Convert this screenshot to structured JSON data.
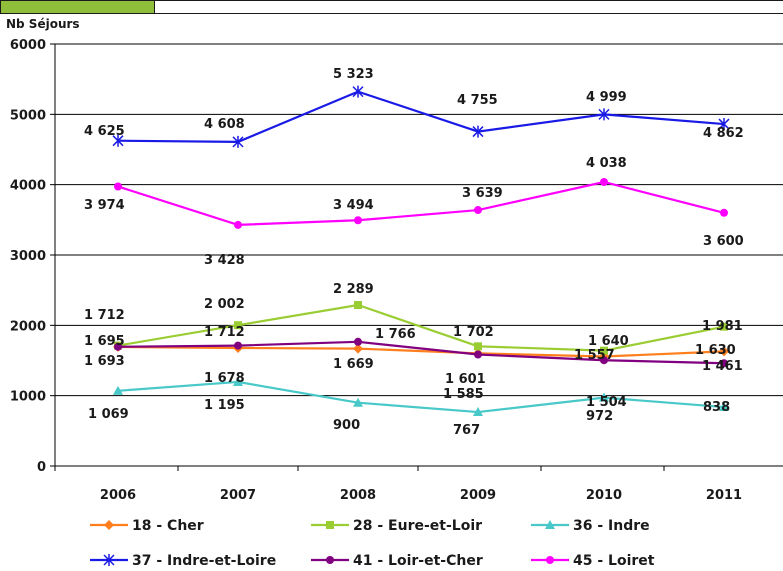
{
  "chart_data": {
    "type": "line",
    "ylabel": "Nb Séjours",
    "ylim": [
      0,
      6000
    ],
    "yticks": [
      0,
      1000,
      2000,
      3000,
      4000,
      5000,
      6000
    ],
    "ytick_labels": [
      "0",
      "1000",
      "2000",
      "3000",
      "4000",
      "5000",
      "6000"
    ],
    "categories": [
      "2006",
      "2007",
      "2008",
      "2009",
      "2010",
      "2011"
    ],
    "grid": true,
    "legend_position": "bottom",
    "series": [
      {
        "name": "18 - Cher",
        "color": "#ff7f1e",
        "marker": "diamond",
        "values": [
          1693,
          1678,
          1669,
          1601,
          1557,
          1630
        ],
        "labels": [
          "1 693",
          "1 678",
          "1 669",
          "1 601",
          "1 557",
          "1 630"
        ]
      },
      {
        "name": "28 - Eure-et-Loir",
        "color": "#9acd32",
        "marker": "square",
        "values": [
          1712,
          2002,
          2289,
          1702,
          1640,
          1981
        ],
        "labels": [
          "1 712",
          "2 002",
          "2 289",
          "1 702",
          "1 640",
          "1 981"
        ]
      },
      {
        "name": "36 - Indre",
        "color": "#48c8c8",
        "marker": "triangle",
        "values": [
          1069,
          1195,
          900,
          767,
          972,
          838
        ],
        "labels": [
          "1 069",
          "1 195",
          "900",
          "767",
          "972",
          "838"
        ]
      },
      {
        "name": "37 - Indre-et-Loire",
        "color": "#1a1ae6",
        "marker": "star",
        "values": [
          4625,
          4608,
          5323,
          4755,
          4999,
          4862
        ],
        "labels": [
          "4 625",
          "4 608",
          "5 323",
          "4 755",
          "4 999",
          "4 862"
        ]
      },
      {
        "name": "41 - Loir-et-Cher",
        "color": "#800080",
        "marker": "circle",
        "values": [
          1695,
          1712,
          1766,
          1585,
          1504,
          1461
        ],
        "labels": [
          "1 695",
          "1 712",
          "1 766",
          "1 585",
          "1 504",
          "1 461"
        ]
      },
      {
        "name": "45 - Loiret",
        "color": "#ff00ff",
        "marker": "circle",
        "values": [
          3974,
          3428,
          3494,
          3639,
          4038,
          3600
        ],
        "labels": [
          "3 974",
          "3 428",
          "3 494",
          "3 639",
          "4 038",
          "3 600"
        ]
      }
    ]
  }
}
